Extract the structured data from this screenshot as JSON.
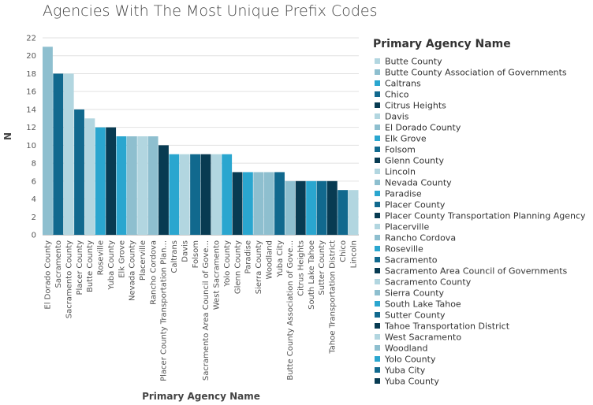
{
  "chart_data": {
    "type": "bar",
    "title": "Agencies With The Most Unique Prefix Codes",
    "xlabel": "Primary Agency Name",
    "ylabel": "N",
    "ylim": [
      0,
      22
    ],
    "yticks": [
      0,
      2,
      4,
      6,
      8,
      10,
      12,
      14,
      16,
      18,
      20,
      22
    ],
    "grid": true,
    "legend_position": "right",
    "legend_title": "Primary Agency Name",
    "categories": [
      "El Dorado County",
      "Sacramento",
      "Sacramento County",
      "Placer County",
      "Butte County",
      "Roseville",
      "Yuba County",
      "Elk Grove",
      "Nevada County",
      "Placerville",
      "Rancho Cordova",
      "Placer County Transportation Plan...",
      "Caltrans",
      "Davis",
      "Folsom",
      "Sacramento Area Council of Gove...",
      "West Sacramento",
      "Yolo County",
      "Glenn County",
      "Paradise",
      "Sierra County",
      "Woodland",
      "Yuba City",
      "Butte County Association of Gove...",
      "Citrus Heights",
      "South Lake Tahoe",
      "Sutter County",
      "Tahoe Transportation District",
      "Chico",
      "Lincoln"
    ],
    "values": [
      21,
      18,
      18,
      14,
      13,
      12,
      12,
      11,
      11,
      11,
      11,
      10,
      9,
      9,
      9,
      9,
      9,
      9,
      7,
      7,
      7,
      7,
      7,
      6,
      6,
      6,
      6,
      6,
      5,
      5
    ],
    "legend_entries": [
      "Butte County",
      "Butte County Association of Governments",
      "Caltrans",
      "Chico",
      "Citrus Heights",
      "Davis",
      "El Dorado County",
      "Elk Grove",
      "Folsom",
      "Glenn County",
      "Lincoln",
      "Nevada County",
      "Paradise",
      "Placer County",
      "Placer County Transportation Planning Agency",
      "Placerville",
      "Rancho Cordova",
      "Roseville",
      "Sacramento",
      "Sacramento Area Council of Governments",
      "Sacramento County",
      "Sierra County",
      "South Lake Tahoe",
      "Sutter County",
      "Tahoe Transportation District",
      "West Sacramento",
      "Woodland",
      "Yolo County",
      "Yuba City",
      "Yuba County"
    ],
    "palette": [
      "#b2d6e0",
      "#8ebfcf",
      "#2aa6cf",
      "#11698e",
      "#083b52"
    ]
  }
}
